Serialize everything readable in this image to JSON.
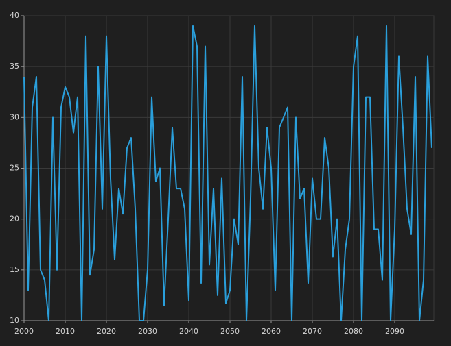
{
  "chart_data": {
    "type": "line",
    "x": [
      2000,
      2001,
      2002,
      2003,
      2004,
      2005,
      2006,
      2007,
      2008,
      2009,
      2010,
      2011,
      2012,
      2013,
      2014,
      2015,
      2016,
      2017,
      2018,
      2019,
      2020,
      2021,
      2022,
      2023,
      2024,
      2025,
      2026,
      2027,
      2028,
      2029,
      2030,
      2031,
      2032,
      2033,
      2034,
      2035,
      2036,
      2037,
      2038,
      2039,
      2040,
      2041,
      2042,
      2043,
      2044,
      2045,
      2046,
      2047,
      2048,
      2049,
      2050,
      2051,
      2052,
      2053,
      2054,
      2055,
      2056,
      2057,
      2058,
      2059,
      2060,
      2061,
      2062,
      2063,
      2064,
      2065,
      2066,
      2067,
      2068,
      2069,
      2070,
      2071,
      2072,
      2073,
      2074,
      2075,
      2076,
      2077,
      2078,
      2079,
      2080,
      2081,
      2082,
      2083,
      2084,
      2085,
      2086,
      2087,
      2088,
      2089,
      2090,
      2091,
      2092,
      2093,
      2094,
      2095,
      2096,
      2097,
      2098,
      2099
    ],
    "values": [
      34,
      13,
      31,
      34,
      15,
      14,
      10,
      30,
      15,
      31,
      33,
      32,
      28.5,
      32,
      10,
      38,
      14.5,
      17,
      35,
      21,
      38,
      24,
      16,
      23,
      20.5,
      27,
      28,
      21,
      10,
      10,
      15,
      32,
      23.7,
      25,
      11.5,
      20,
      29,
      23,
      23,
      21,
      12,
      39,
      37,
      13.7,
      37,
      15.5,
      23,
      12.5,
      24,
      11.7,
      13,
      20,
      17.5,
      34,
      10,
      22,
      39,
      25,
      21,
      29,
      25,
      13,
      29,
      30,
      31,
      10,
      30,
      22,
      23,
      13.7,
      24,
      20,
      20,
      28,
      25,
      16.3,
      20,
      10,
      17,
      20,
      35,
      38,
      10,
      32,
      32,
      19,
      19,
      14,
      39,
      10,
      19,
      36,
      29,
      21,
      18.5,
      34,
      10,
      14,
      36,
      27
    ],
    "color": "#2a9fdb",
    "xlim": [
      2000,
      2099.5
    ],
    "ylim": [
      10,
      40
    ],
    "xticks": [
      2000,
      2010,
      2020,
      2030,
      2040,
      2050,
      2060,
      2070,
      2080,
      2090
    ],
    "yticks": [
      10,
      15,
      20,
      25,
      30,
      35,
      40
    ],
    "grid": true
  }
}
